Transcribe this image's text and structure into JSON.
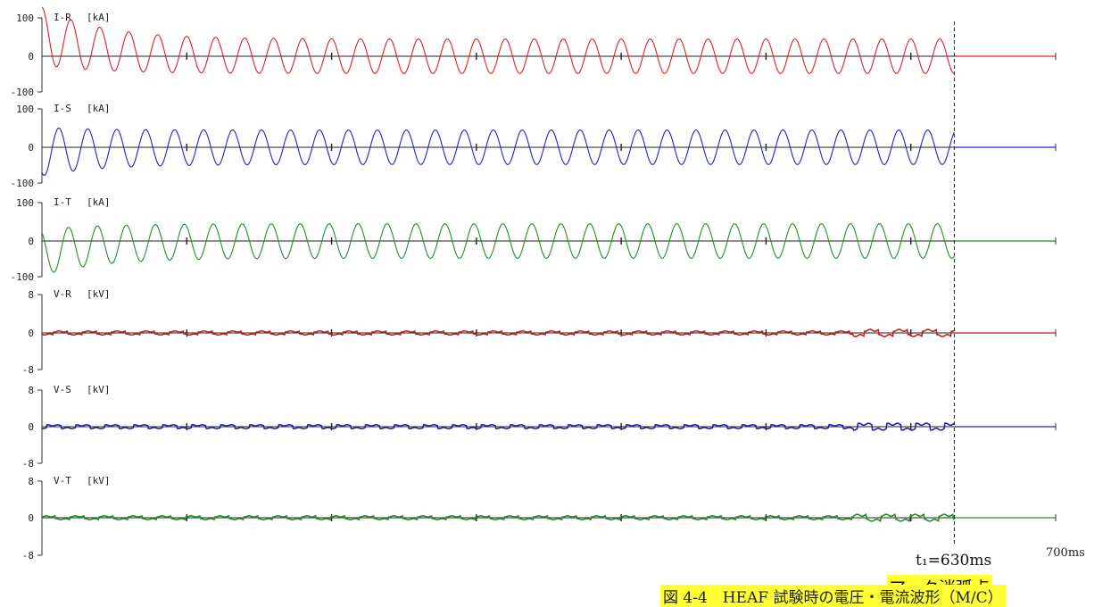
{
  "chart_data": {
    "type": "line",
    "x_unit": "ms",
    "x_end_label": "700ms",
    "xlim": [
      0,
      700
    ],
    "frequency_hz": 50,
    "panels": [
      {
        "name": "I-R",
        "unit": "[kA]",
        "color": "#e02020",
        "ylim": [
          -100,
          100
        ],
        "ticks": [
          "100",
          "0",
          "-100"
        ],
        "amplitude": 45,
        "offset": 10,
        "initial_peak": 95,
        "decay_ms": 40,
        "waveform": "sine",
        "series_end_ms": 630,
        "after_end_value": 0
      },
      {
        "name": "I-S",
        "unit": "[kA]",
        "color": "#2020d0",
        "ylim": [
          -100,
          100
        ],
        "ticks": [
          "100",
          "0",
          "-100"
        ],
        "amplitude": 45,
        "offset": 0,
        "initial_peak": -75,
        "decay_ms": 40,
        "waveform": "sine",
        "series_end_ms": 630,
        "after_end_value": 0
      },
      {
        "name": "I-T",
        "unit": "[kA]",
        "color": "#209020",
        "ylim": [
          -100,
          100
        ],
        "ticks": [
          "100",
          "0",
          "-100"
        ],
        "amplitude": 45,
        "offset": -5,
        "initial_peak": -70,
        "decay_ms": 40,
        "waveform": "sine",
        "series_end_ms": 630,
        "after_end_value": 0
      },
      {
        "name": "V-R",
        "unit": "[kV]",
        "color": "#c02020",
        "ylim": [
          -8,
          8
        ],
        "ticks": [
          "8",
          "0",
          "-8"
        ],
        "amplitude": 0.3,
        "offset": 0,
        "waveform": "arc-square",
        "series_end_ms": 630,
        "after_end_value": 0
      },
      {
        "name": "V-S",
        "unit": "[kV]",
        "color": "#2020b0",
        "ylim": [
          -8,
          8
        ],
        "ticks": [
          "8",
          "0",
          "-8"
        ],
        "amplitude": 0.3,
        "offset": 0,
        "waveform": "arc-square",
        "series_end_ms": 630,
        "after_end_value": 0
      },
      {
        "name": "V-T",
        "unit": "[kV]",
        "color": "#209020",
        "ylim": [
          -8,
          8
        ],
        "ticks": [
          "8",
          "0",
          "-8"
        ],
        "amplitude": 0.3,
        "offset": 0,
        "waveform": "arc-square",
        "series_end_ms": 630,
        "after_end_value": 0
      }
    ],
    "marker": {
      "x": 630,
      "label": "t₁=630ms",
      "note": "アーク消弧点"
    },
    "caption": "図 4-4　HEAF 試験時の電圧・電流波形（M/C）"
  }
}
